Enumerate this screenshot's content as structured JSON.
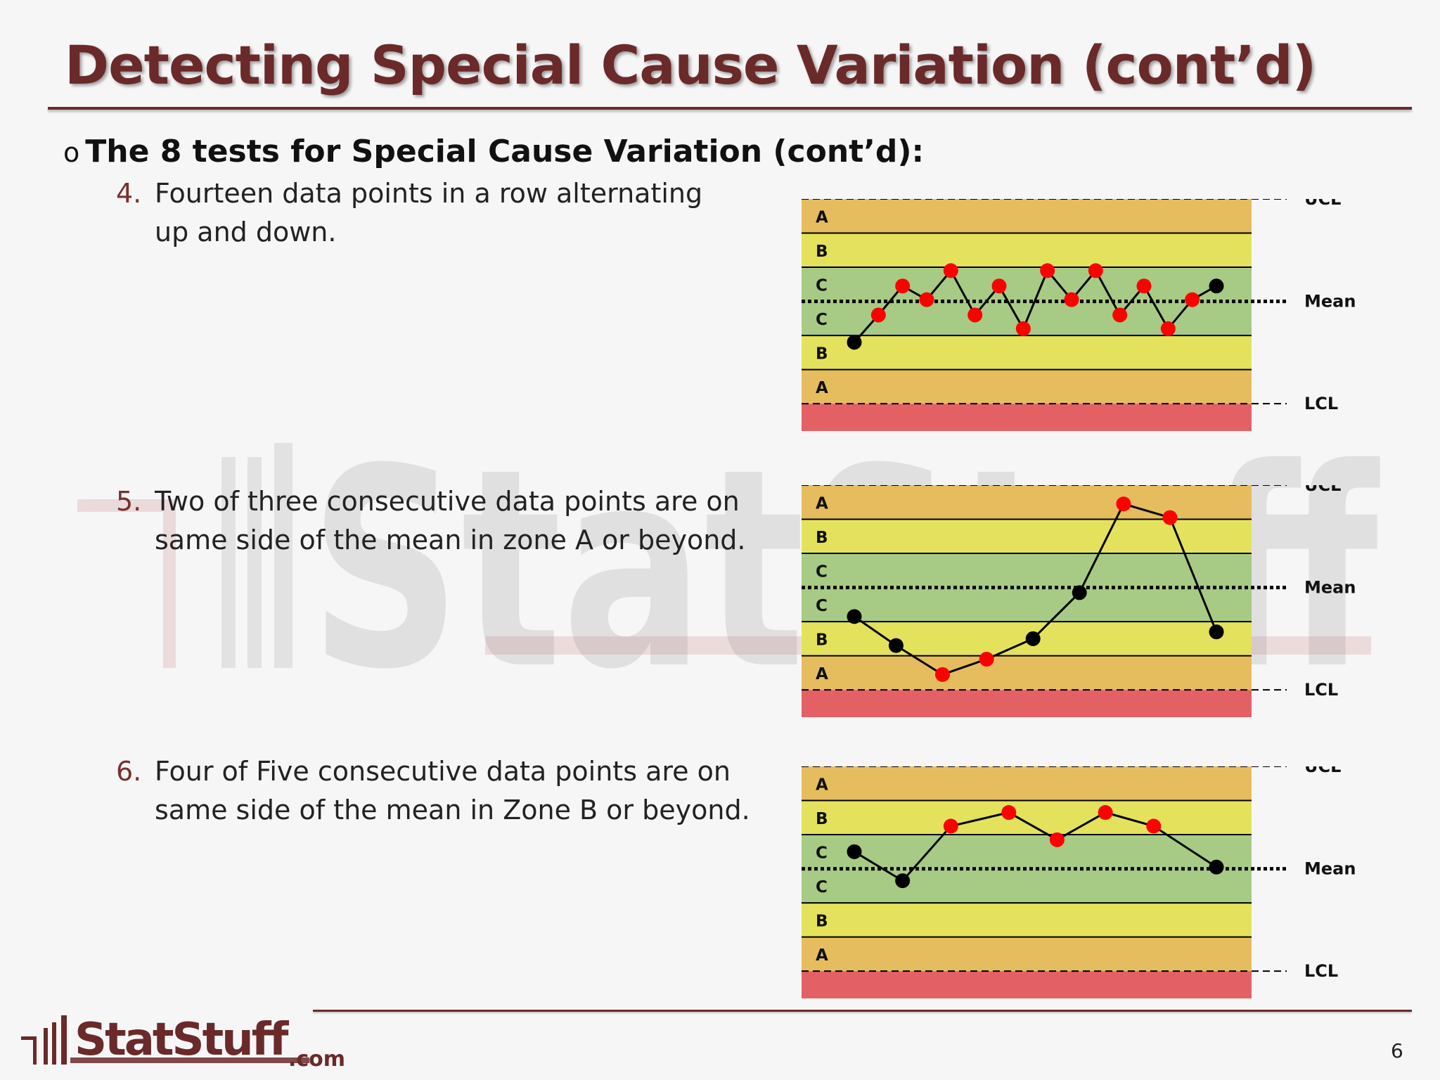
{
  "slide": {
    "title": "Detecting Special Cause Variation (cont’d)",
    "bullet_marker": "o",
    "bullet": "The 8 tests for Special Cause Variation (cont’d):",
    "items": [
      {
        "number": "4.",
        "line1": "Fourteen data points in a row alternating",
        "line2": "up and down."
      },
      {
        "number": "5.",
        "line1": "Two of three consecutive data points are on",
        "line2": "same side of the mean in zone A or beyond."
      },
      {
        "number": "6.",
        "line1": "Four of Five consecutive data points are on",
        "line2": "same side of the mean in Zone B or beyond."
      }
    ],
    "page_number": "6",
    "logo": {
      "text_stat": "Stat",
      "text_stuff": "Stuff",
      "text_com": ".com",
      "color": "#6a2a2a"
    },
    "watermark_text": "StatStuff"
  },
  "colors": {
    "zone_beyond": "#e36164",
    "zone_a": "#e6bd5e",
    "zone_b": "#e4e25c",
    "zone_c": "#a7cb84",
    "point_flagged": "#ff0000",
    "point_normal": "#000000",
    "title": "#6a2a2a"
  },
  "chart_data": [
    {
      "type": "line",
      "title": "",
      "zone_labels": [
        "A",
        "B",
        "C",
        "C",
        "B",
        "A"
      ],
      "line_labels": {
        "ucl": "UCL",
        "mean": "Mean",
        "lcl": "LCL"
      },
      "sigma_units": true,
      "ylim": [
        -3.8,
        3.0
      ],
      "y": [
        -1.2,
        -0.4,
        0.45,
        0.05,
        0.9,
        -0.4,
        0.45,
        -0.8,
        0.9,
        0.05,
        0.9,
        -0.4,
        0.45,
        -0.8,
        0.05,
        0.45
      ],
      "flagged": [
        false,
        true,
        true,
        true,
        true,
        true,
        true,
        true,
        true,
        true,
        true,
        true,
        true,
        true,
        true,
        false
      ]
    },
    {
      "type": "line",
      "title": "",
      "zone_labels": [
        "A",
        "B",
        "C",
        "C",
        "B",
        "A"
      ],
      "line_labels": {
        "ucl": "UCL",
        "mean": "Mean",
        "lcl": "LCL"
      },
      "sigma_units": true,
      "ylim": [
        -3.8,
        3.0
      ],
      "y": [
        -0.85,
        -1.7,
        -2.55,
        -2.1,
        -1.5,
        -0.15,
        2.45,
        2.05,
        -1.3
      ],
      "x": [
        0,
        0.9,
        1.9,
        2.85,
        3.85,
        4.85,
        5.8,
        6.8,
        7.8
      ],
      "flagged": [
        false,
        false,
        true,
        true,
        false,
        false,
        true,
        true,
        false
      ]
    },
    {
      "type": "line",
      "title": "",
      "zone_labels": [
        "A",
        "B",
        "C",
        "C",
        "B",
        "A"
      ],
      "line_labels": {
        "ucl": "UCL",
        "mean": "Mean",
        "lcl": "LCL"
      },
      "sigma_units": true,
      "ylim": [
        -3.8,
        3.0
      ],
      "y": [
        0.5,
        -0.35,
        1.25,
        1.65,
        0.85,
        1.65,
        1.25,
        0.05
      ],
      "x": [
        0,
        1,
        2,
        3.2,
        4.2,
        5.2,
        6.2,
        7.5
      ],
      "flagged": [
        false,
        false,
        true,
        true,
        true,
        true,
        true,
        false
      ]
    }
  ]
}
